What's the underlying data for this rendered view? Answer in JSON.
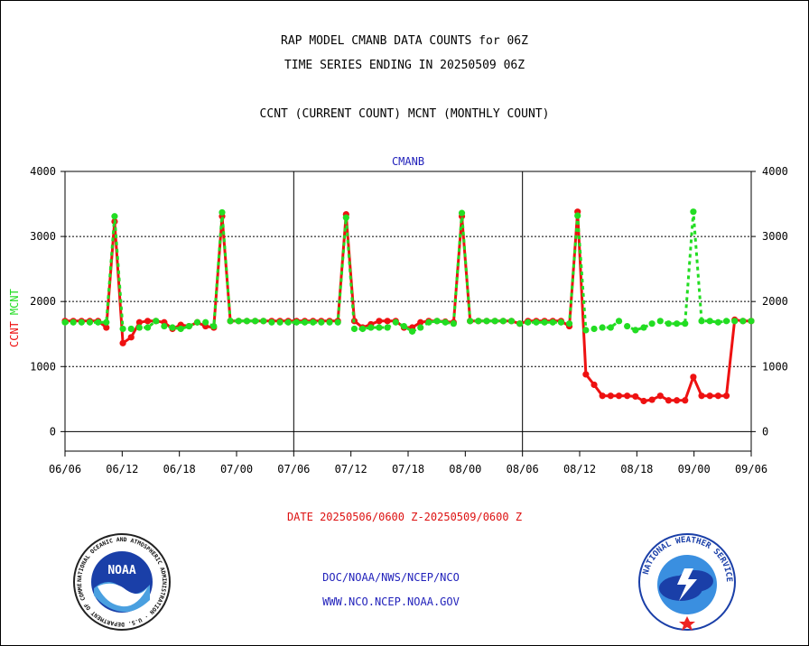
{
  "titles": {
    "line1": "RAP MODEL CMANB DATA COUNTS for 06Z",
    "line2": "TIME SERIES ENDING IN 20250509 06Z",
    "line3": "CCNT (CURRENT COUNT) MCNT (MONTHLY COUNT)"
  },
  "footer": {
    "date_range": "DATE 20250506/0600 Z-20250509/0600 Z",
    "org": "DOC/NOAA/NWS/NCEP/NCO",
    "url": "WWW.NCO.NCEP.NOAA.GOV"
  },
  "logos": {
    "noaa_text": "NOAA",
    "noaa_ring": "NATIONAL OCEANIC AND ATMOSPHERIC ADMINISTRATION · U.S. DEPARTMENT OF COMMERCE ·",
    "nws_ring": "NATIONAL WEATHER SERVICE"
  },
  "colors": {
    "ccnt": "#ee1111",
    "mcnt": "#22dd22",
    "title": "#000000",
    "date_text": "#dd1111",
    "org_text": "#2222bb",
    "plot_title": "#2222bb"
  },
  "chart_data": {
    "type": "line",
    "title": "CMANB",
    "ylabel_left": [
      "CCNT",
      "MCNT"
    ],
    "ylim": [
      -300,
      4000
    ],
    "yticks": [
      0,
      1000,
      2000,
      3000,
      4000
    ],
    "ytick_labels": [
      "0",
      "1000",
      "2000",
      "3000",
      "4000"
    ],
    "gridlines": [
      1000,
      2000,
      3000
    ],
    "xticks": [
      "06/06",
      "06/12",
      "06/18",
      "07/00",
      "07/06",
      "07/12",
      "07/18",
      "08/00",
      "08/06",
      "08/12",
      "08/18",
      "09/00",
      "09/06"
    ],
    "separators": [
      "07/06",
      "08/06"
    ],
    "series": [
      {
        "name": "CCNT",
        "values": [
          1700,
          1700,
          1700,
          1700,
          1700,
          1600,
          3230,
          1360,
          1450,
          1680,
          1700,
          1700,
          1680,
          1580,
          1640,
          1620,
          1680,
          1620,
          1600,
          3310,
          1700,
          1700,
          1700,
          1700,
          1700,
          1700,
          1700,
          1700,
          1700,
          1700,
          1700,
          1700,
          1700,
          1700,
          3340,
          1700,
          1600,
          1650,
          1700,
          1700,
          1700,
          1600,
          1600,
          1680,
          1700,
          1700,
          1690,
          1680,
          3310,
          1700,
          1700,
          1700,
          1700,
          1700,
          1700,
          1660,
          1700,
          1700,
          1700,
          1700,
          1700,
          1620,
          3380,
          880,
          720,
          550,
          550,
          550,
          550,
          540,
          470,
          490,
          550,
          480,
          480,
          480,
          840,
          550,
          550,
          550,
          550,
          1720,
          1700,
          1700
        ]
      },
      {
        "name": "MCNT",
        "values": [
          1680,
          1680,
          1680,
          1680,
          1680,
          1680,
          3310,
          1580,
          1580,
          1600,
          1600,
          1700,
          1620,
          1600,
          1580,
          1620,
          1680,
          1680,
          1620,
          3370,
          1700,
          1700,
          1700,
          1700,
          1700,
          1680,
          1680,
          1680,
          1680,
          1680,
          1680,
          1680,
          1680,
          1680,
          3290,
          1580,
          1580,
          1600,
          1600,
          1600,
          1680,
          1620,
          1540,
          1600,
          1680,
          1700,
          1680,
          1660,
          3360,
          1700,
          1700,
          1700,
          1700,
          1700,
          1700,
          1660,
          1680,
          1680,
          1680,
          1680,
          1680,
          1660,
          3320,
          1560,
          1580,
          1600,
          1600,
          1700,
          1620,
          1560,
          1600,
          1660,
          1700,
          1660,
          1660,
          1660,
          3380,
          1700,
          1700,
          1680,
          1700,
          1700,
          1700,
          1700
        ]
      }
    ]
  }
}
